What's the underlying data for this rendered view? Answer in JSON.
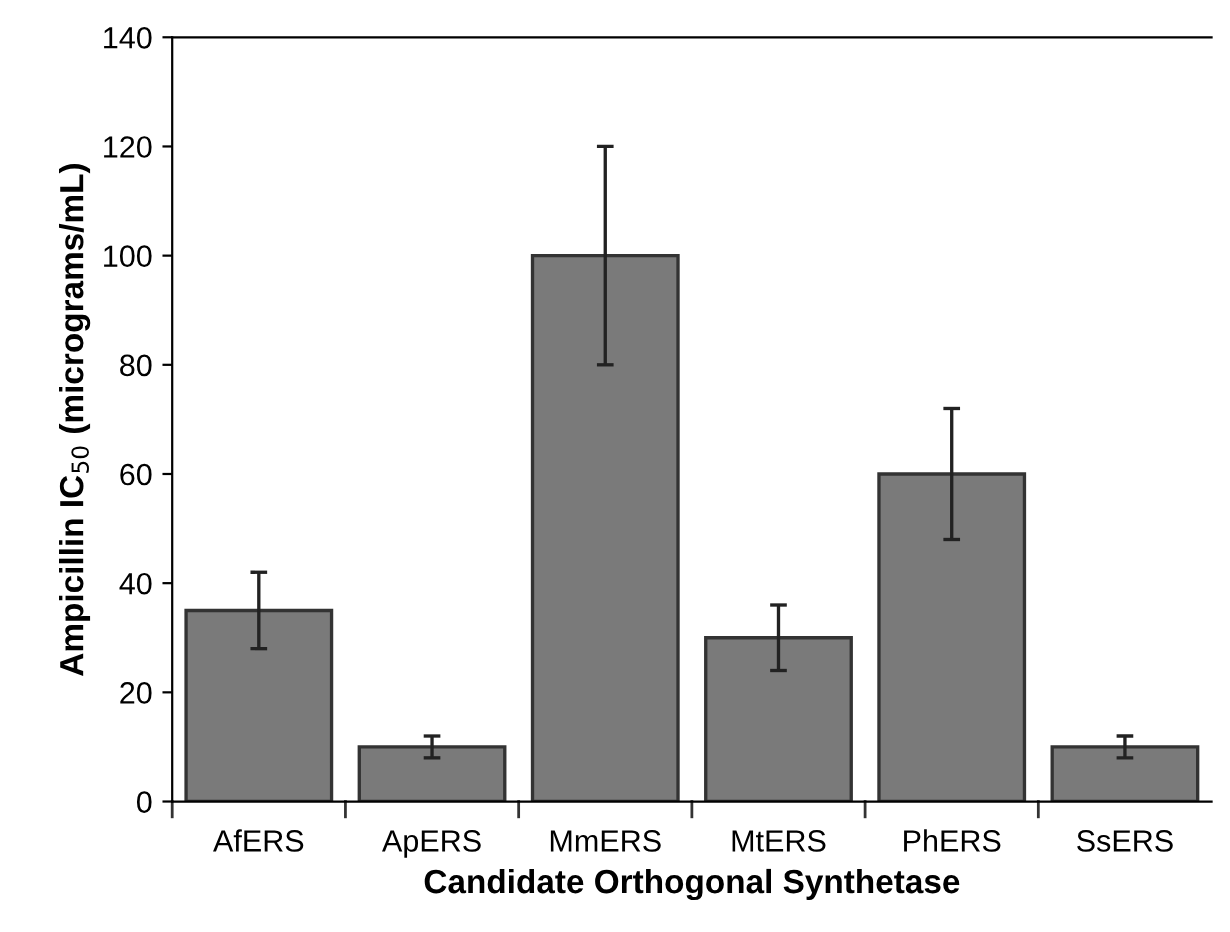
{
  "chart_data": {
    "type": "bar",
    "xlabel": "Candidate Orthogonal Synthetase",
    "ylabel": "Ampicillin IC$_{50}$ (micrograms/mL)",
    "categories": [
      "AfERS",
      "ApERS",
      "MmERS",
      "MtERS",
      "PhERS",
      "SsERS"
    ],
    "values": [
      35,
      10,
      100,
      30,
      60,
      10
    ],
    "errors": [
      7,
      2,
      20,
      6,
      12,
      2
    ],
    "color": "#7a7a7a",
    "ylim": [
      0,
      140
    ],
    "yticks": [
      0,
      20,
      40,
      60,
      80,
      100,
      120,
      140
    ],
    "grid": false,
    "legend": false
  }
}
